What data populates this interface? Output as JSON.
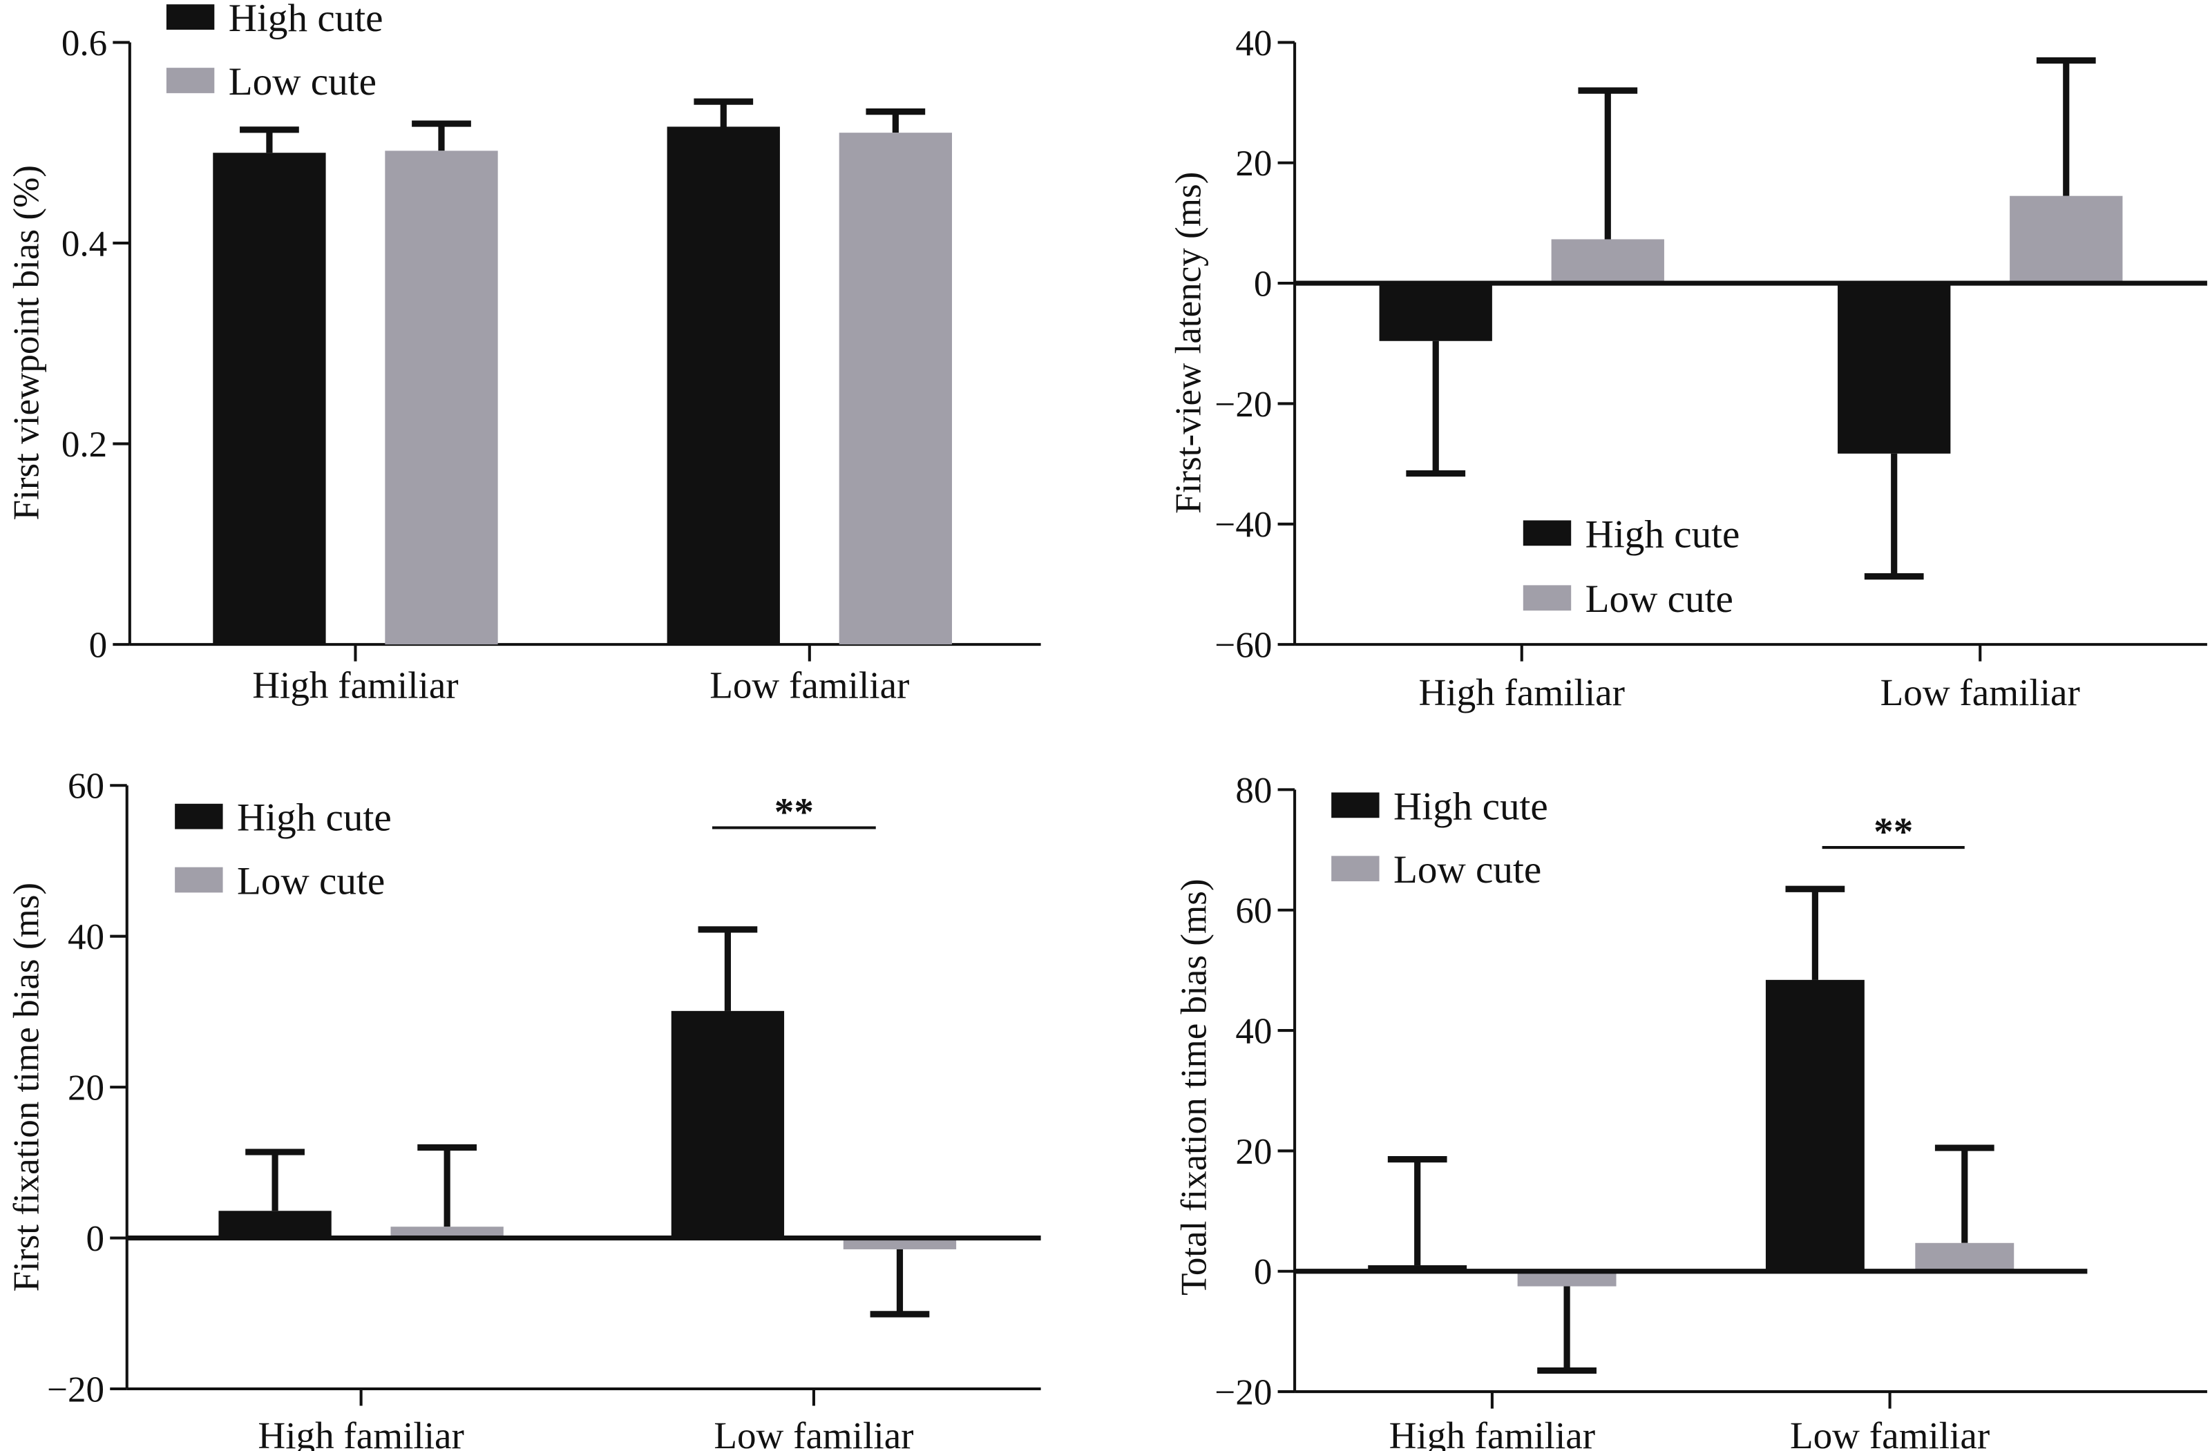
{
  "colors": {
    "High cute": "#111111",
    "Low cute": "#a19fa9",
    "axis": "#111111"
  },
  "chart_data": [
    {
      "type": "bar",
      "ylabel": "First viewpoint bias (%)",
      "xlabel": "",
      "ylim": [
        0,
        0.6
      ],
      "yticks": [
        0,
        0.2,
        0.4,
        0.6
      ],
      "ytick_labels": [
        "0",
        "0.2",
        "0.4",
        "0.6"
      ],
      "categories": [
        "High familiar",
        "Low familiar"
      ],
      "legend": "top-left",
      "series": [
        {
          "name": "High cute",
          "values": [
            0.49,
            0.516
          ],
          "error_upper": [
            0.513,
            0.541
          ]
        },
        {
          "name": "Low cute",
          "values": [
            0.492,
            0.51
          ],
          "error_upper": [
            0.519,
            0.531
          ]
        }
      ],
      "annotations": []
    },
    {
      "type": "bar",
      "ylabel": "First-view latency (ms)",
      "xlabel": "",
      "ylim": [
        -60,
        40
      ],
      "yticks": [
        -60,
        -40,
        -20,
        0,
        20,
        40
      ],
      "ytick_labels": [
        "−60",
        "−40",
        "−20",
        "0",
        "20",
        "40"
      ],
      "categories": [
        "High familiar",
        "Low familiar"
      ],
      "legend": "bottom-center",
      "series": [
        {
          "name": "High cute",
          "values": [
            -9.6,
            -28.3
          ],
          "error_upper": [
            -31.6,
            -48.7
          ]
        },
        {
          "name": "Low cute",
          "values": [
            7.3,
            14.5
          ],
          "error_upper": [
            32,
            37
          ]
        }
      ],
      "annotations": []
    },
    {
      "type": "bar",
      "ylabel": "First fixation time bias (ms)",
      "xlabel": "",
      "ylim": [
        -20,
        60
      ],
      "yticks": [
        -20,
        0,
        20,
        40,
        60
      ],
      "ytick_labels": [
        "−20",
        "0",
        "20",
        "40",
        "60"
      ],
      "categories": [
        "High familiar",
        "Low familiar"
      ],
      "legend": "top-left",
      "series": [
        {
          "name": "High cute",
          "values": [
            3.6,
            30.1
          ],
          "error_upper": [
            11.4,
            40.9
          ]
        },
        {
          "name": "Low cute",
          "values": [
            1.5,
            -1.5
          ],
          "error_upper": [
            12,
            -10.1
          ]
        }
      ],
      "annotations": [
        {
          "text": "**",
          "category": "Low familiar"
        }
      ]
    },
    {
      "type": "bar",
      "ylabel": "Total fixation time bias (ms)",
      "xlabel": "",
      "ylim": [
        -20,
        80
      ],
      "yticks": [
        -20,
        0,
        20,
        40,
        60,
        80
      ],
      "ytick_labels": [
        "−20",
        "0",
        "20",
        "40",
        "60",
        "80"
      ],
      "categories": [
        "High familiar",
        "Low familiar"
      ],
      "legend": "top-left",
      "series": [
        {
          "name": "High cute",
          "values": [
            1,
            48.4
          ],
          "error_upper": [
            18.6,
            63.5
          ]
        },
        {
          "name": "Low cute",
          "values": [
            -2.5,
            4.7
          ],
          "error_upper": [
            -16.5,
            20.5
          ]
        }
      ],
      "annotations": [
        {
          "text": "**",
          "category": "Low familiar"
        }
      ]
    }
  ]
}
